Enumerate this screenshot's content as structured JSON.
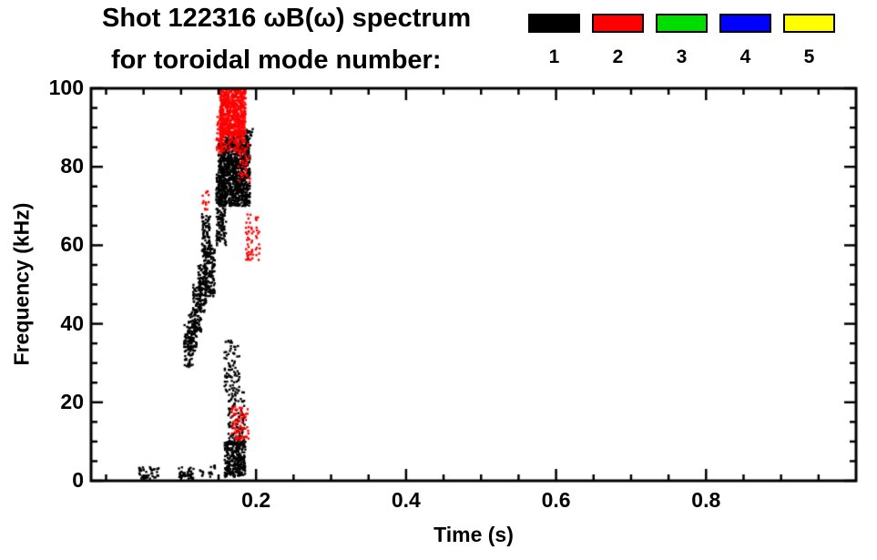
{
  "title": {
    "line1": "Shot 122316 ωB(ω) spectrum",
    "line2": "for toroidal mode number:"
  },
  "legend": {
    "items": [
      {
        "label": "1",
        "color": "#000000"
      },
      {
        "label": "2",
        "color": "#ff0000"
      },
      {
        "label": "3",
        "color": "#00dd00"
      },
      {
        "label": "4",
        "color": "#0000ff"
      },
      {
        "label": "5",
        "color": "#ffff00"
      }
    ]
  },
  "chart_data": {
    "type": "scatter",
    "title": "Shot 122316 ωB(ω) spectrum for toroidal mode number:",
    "xlabel": "Time (s)",
    "ylabel": "Frequency (kHz)",
    "xlim": [
      -0.02,
      1.0
    ],
    "ylim": [
      0,
      100
    ],
    "xticks": [
      0.2,
      0.4,
      0.6,
      0.8
    ],
    "yticks": [
      0,
      20,
      40,
      60,
      80,
      100
    ],
    "x_minor_step": 0.05,
    "y_minor_step": 5,
    "grid": false,
    "legend_position": "top-right",
    "series": [
      {
        "name": "n=1",
        "color": "#000000",
        "clusters": [
          {
            "t": [
              0.15,
              0.192
            ],
            "f": [
              70,
              86
            ],
            "n": 950
          },
          {
            "t": [
              0.147,
              0.16
            ],
            "f": [
              60,
              78
            ],
            "n": 180
          },
          {
            "t": [
              0.158,
              0.19
            ],
            "f": [
              85,
              89
            ],
            "n": 120
          },
          {
            "t": [
              0.128,
              0.139
            ],
            "f": [
              57,
              68
            ],
            "n": 90
          },
          {
            "t": [
              0.116,
              0.127
            ],
            "f": [
              38,
              50
            ],
            "n": 110
          },
          {
            "t": [
              0.123,
              0.134
            ],
            "f": [
              43,
              55
            ],
            "n": 110
          },
          {
            "t": [
              0.131,
              0.145
            ],
            "f": [
              47,
              60
            ],
            "n": 130
          },
          {
            "t": [
              0.104,
              0.117
            ],
            "f": [
              29,
              40
            ],
            "n": 90
          },
          {
            "t": [
              0.11,
              0.121
            ],
            "f": [
              33,
              43
            ],
            "n": 70
          },
          {
            "t": [
              0.158,
              0.178
            ],
            "f": [
              22,
              36
            ],
            "n": 80
          },
          {
            "t": [
              0.163,
              0.185
            ],
            "f": [
              9,
              23
            ],
            "n": 110
          },
          {
            "t": [
              0.158,
              0.186
            ],
            "f": [
              1,
              10
            ],
            "n": 300
          },
          {
            "t": [
              0.044,
              0.07
            ],
            "f": [
              0.5,
              3.5
            ],
            "n": 45
          },
          {
            "t": [
              0.097,
              0.117
            ],
            "f": [
              0.5,
              3.5
            ],
            "n": 45
          },
          {
            "t": [
              0.125,
              0.13
            ],
            "f": [
              1,
              3
            ],
            "n": 6
          },
          {
            "t": [
              0.137,
              0.146
            ],
            "f": [
              1,
              4
            ],
            "n": 14
          },
          {
            "t": [
              0.185,
              0.196
            ],
            "f": [
              85,
              90
            ],
            "n": 20
          }
        ]
      },
      {
        "name": "n=2",
        "color": "#ff0000",
        "clusters": [
          {
            "t": [
              0.152,
              0.186
            ],
            "f": [
              88,
              100
            ],
            "n": 650
          },
          {
            "t": [
              0.147,
              0.158
            ],
            "f": [
              83,
              93
            ],
            "n": 80
          },
          {
            "t": [
              0.16,
              0.186
            ],
            "f": [
              84,
              89
            ],
            "n": 80
          },
          {
            "t": [
              0.176,
              0.192
            ],
            "f": [
              76,
              87
            ],
            "n": 50
          },
          {
            "t": [
              0.186,
              0.205
            ],
            "f": [
              55,
              68
            ],
            "n": 55
          },
          {
            "t": [
              0.128,
              0.137
            ],
            "f": [
              69,
              74
            ],
            "n": 14
          },
          {
            "t": [
              0.167,
              0.19
            ],
            "f": [
              10,
              19
            ],
            "n": 70
          }
        ]
      },
      {
        "name": "n=3",
        "color": "#00dd00",
        "clusters": []
      },
      {
        "name": "n=4",
        "color": "#0000ff",
        "clusters": []
      },
      {
        "name": "n=5",
        "color": "#ffff00",
        "clusters": []
      }
    ]
  }
}
